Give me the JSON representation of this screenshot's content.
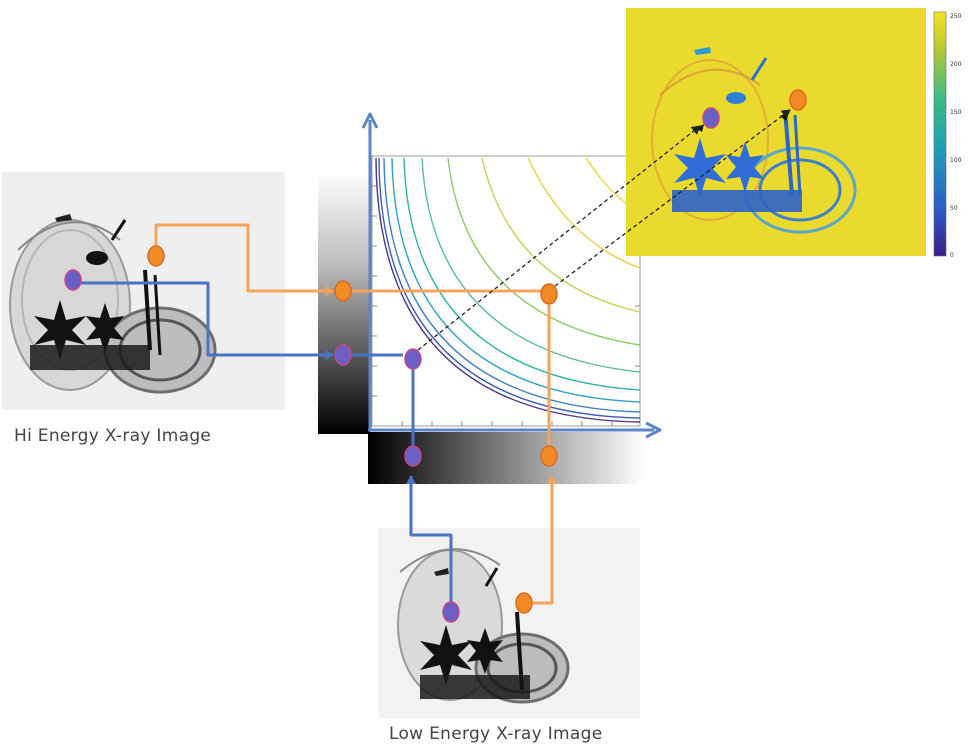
{
  "captions": {
    "hi_energy": "Hi Energy X-ray Image",
    "low_energy": "Low Energy X-ray Image"
  },
  "colorbar": {
    "ticks": [
      "250",
      "200",
      "150",
      "100",
      "50",
      "0"
    ]
  },
  "colors": {
    "axis": "#5b86c5",
    "orange_marker": "#f08a24",
    "blue_marker": "#6a5fc4",
    "orange_line": "#f5a35a",
    "blue_line": "#4a73c6",
    "result_background": "#eada2e"
  },
  "icons": {
    "scanner_left": "xray-suitcase-hi-energy",
    "scanner_bottom": "xray-suitcase-low-energy",
    "result": "material-classification-map"
  }
}
